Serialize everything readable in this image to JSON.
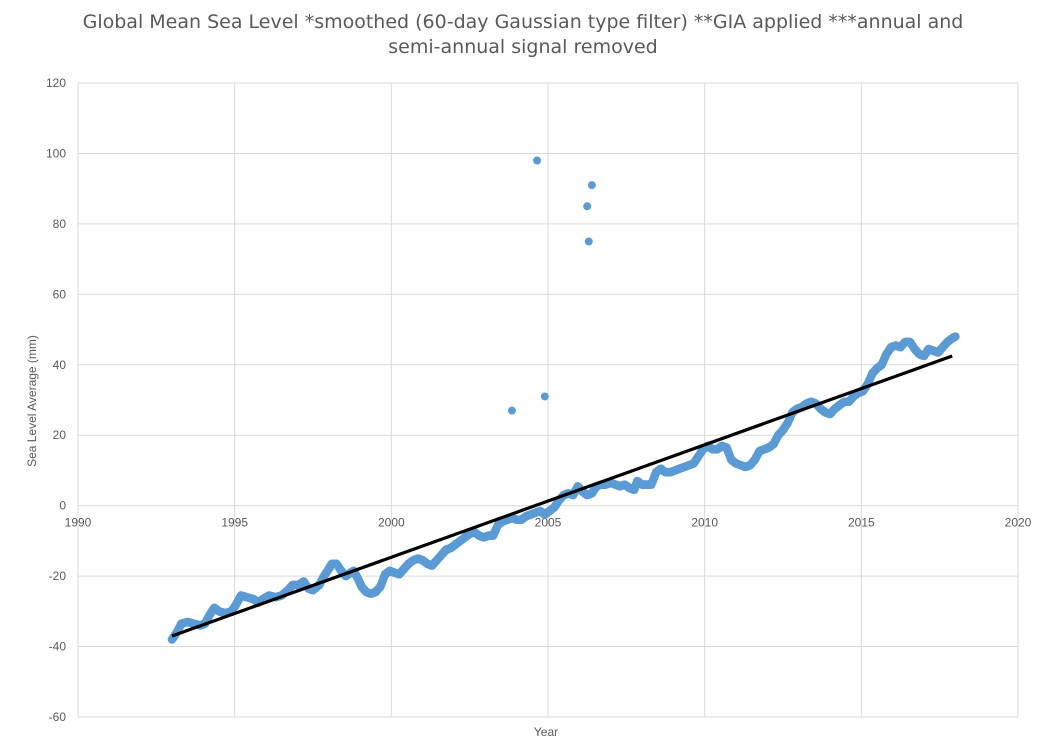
{
  "chart_data": {
    "type": "scatter",
    "title": "Global Mean Sea Level *smoothed (60-day Gaussian type filter) **GIA applied ***annual and semi-annual signal removed",
    "title_lines": [
      "Global Mean Sea Level *smoothed (60-day Gaussian type filter) **GIA applied ***annual and",
      "semi-annual signal removed"
    ],
    "xlabel": "Year",
    "ylabel": "Sea Level Average (mm)",
    "xlim": [
      1990,
      2020
    ],
    "ylim": [
      -60,
      120
    ],
    "x_ticks": [
      "1990",
      "1995",
      "2000",
      "2005",
      "2010",
      "2015",
      "2020"
    ],
    "y_ticks": [
      "-60",
      "-40",
      "-20",
      "0",
      "20",
      "40",
      "60",
      "80",
      "100",
      "120"
    ],
    "grid": true,
    "marker_color": "#5b9bd5",
    "trendline_color": "#000000",
    "series": [
      {
        "values": [
          [
            1993.0,
            -38
          ],
          [
            1993.15,
            -36
          ],
          [
            1993.3,
            -33.5
          ],
          [
            1993.5,
            -33
          ],
          [
            1993.7,
            -33.5
          ],
          [
            1993.9,
            -34
          ],
          [
            1994.05,
            -33.5
          ],
          [
            1994.2,
            -31
          ],
          [
            1994.35,
            -29
          ],
          [
            1994.5,
            -30
          ],
          [
            1994.7,
            -30.5
          ],
          [
            1994.9,
            -30
          ],
          [
            1995.05,
            -28
          ],
          [
            1995.2,
            -25.5
          ],
          [
            1995.4,
            -26
          ],
          [
            1995.6,
            -26.5
          ],
          [
            1995.75,
            -27.5
          ],
          [
            1995.9,
            -26.5
          ],
          [
            1996.1,
            -25.5
          ],
          [
            1996.3,
            -26
          ],
          [
            1996.5,
            -25.5
          ],
          [
            1996.7,
            -24
          ],
          [
            1996.85,
            -22.5
          ],
          [
            1997.05,
            -22.5
          ],
          [
            1997.2,
            -21.5
          ],
          [
            1997.35,
            -23.5
          ],
          [
            1997.5,
            -24
          ],
          [
            1997.7,
            -22.5
          ],
          [
            1997.85,
            -20
          ],
          [
            1998.0,
            -18
          ],
          [
            1998.1,
            -16.5
          ],
          [
            1998.25,
            -16.5
          ],
          [
            1998.4,
            -18.5
          ],
          [
            1998.55,
            -20
          ],
          [
            1998.7,
            -19
          ],
          [
            1998.8,
            -18.5
          ],
          [
            1998.95,
            -21
          ],
          [
            1999.05,
            -23
          ],
          [
            1999.2,
            -24.5
          ],
          [
            1999.35,
            -25
          ],
          [
            1999.5,
            -24.5
          ],
          [
            1999.65,
            -23
          ],
          [
            1999.8,
            -19.5
          ],
          [
            1999.95,
            -18.5
          ],
          [
            2000.1,
            -19
          ],
          [
            2000.25,
            -19.5
          ],
          [
            2000.4,
            -18
          ],
          [
            2000.55,
            -16.5
          ],
          [
            2000.7,
            -15.5
          ],
          [
            2000.85,
            -15
          ],
          [
            2001.0,
            -15.5
          ],
          [
            2001.15,
            -16.5
          ],
          [
            2001.3,
            -17
          ],
          [
            2001.45,
            -15.5
          ],
          [
            2001.6,
            -14
          ],
          [
            2001.75,
            -12.5
          ],
          [
            2001.9,
            -12
          ],
          [
            2002.05,
            -11
          ],
          [
            2002.2,
            -10
          ],
          [
            2002.35,
            -9
          ],
          [
            2002.5,
            -8
          ],
          [
            2002.65,
            -7.5
          ],
          [
            2002.8,
            -8.5
          ],
          [
            2002.95,
            -9
          ],
          [
            2003.1,
            -8.5
          ],
          [
            2003.25,
            -8.5
          ],
          [
            2003.4,
            -5.5
          ],
          [
            2003.55,
            -4.5
          ],
          [
            2003.7,
            -4
          ],
          [
            2003.85,
            -3.5
          ],
          [
            2004.0,
            -4
          ],
          [
            2004.15,
            -4
          ],
          [
            2004.3,
            -3
          ],
          [
            2004.45,
            -2.5
          ],
          [
            2004.6,
            -2
          ],
          [
            2004.75,
            -1.5
          ],
          [
            2004.9,
            -2.5
          ],
          [
            2005.05,
            -1.5
          ],
          [
            2005.2,
            -0.5
          ],
          [
            2005.35,
            1.5
          ],
          [
            2005.5,
            3
          ],
          [
            2005.65,
            3.5
          ],
          [
            2005.8,
            3
          ],
          [
            2005.95,
            5.5
          ],
          [
            2006.1,
            4
          ],
          [
            2006.25,
            3
          ],
          [
            2006.4,
            3.5
          ],
          [
            2006.55,
            5.5
          ],
          [
            2006.7,
            6
          ],
          [
            2006.85,
            6
          ],
          [
            2007.0,
            6.5
          ],
          [
            2007.15,
            6
          ],
          [
            2007.3,
            5.5
          ],
          [
            2007.45,
            6
          ],
          [
            2007.6,
            5
          ],
          [
            2007.75,
            4.5
          ],
          [
            2007.85,
            7
          ],
          [
            2008.0,
            6
          ],
          [
            2008.15,
            6
          ],
          [
            2008.3,
            6
          ],
          [
            2008.45,
            9.5
          ],
          [
            2008.6,
            10.5
          ],
          [
            2008.75,
            9.5
          ],
          [
            2008.9,
            9.5
          ],
          [
            2009.05,
            10
          ],
          [
            2009.2,
            10.5
          ],
          [
            2009.35,
            11
          ],
          [
            2009.5,
            11.5
          ],
          [
            2009.65,
            12
          ],
          [
            2009.8,
            14
          ],
          [
            2009.95,
            16
          ],
          [
            2010.1,
            17
          ],
          [
            2010.25,
            16
          ],
          [
            2010.4,
            16
          ],
          [
            2010.55,
            17
          ],
          [
            2010.7,
            16.5
          ],
          [
            2010.85,
            13
          ],
          [
            2011.0,
            12
          ],
          [
            2011.15,
            11.5
          ],
          [
            2011.3,
            11
          ],
          [
            2011.45,
            11.5
          ],
          [
            2011.6,
            13
          ],
          [
            2011.75,
            15.5
          ],
          [
            2011.9,
            16
          ],
          [
            2012.05,
            16.5
          ],
          [
            2012.2,
            17.5
          ],
          [
            2012.35,
            20
          ],
          [
            2012.5,
            21.5
          ],
          [
            2012.65,
            23.5
          ],
          [
            2012.8,
            26.5
          ],
          [
            2012.95,
            27.5
          ],
          [
            2013.1,
            28
          ],
          [
            2013.25,
            29
          ],
          [
            2013.4,
            29.5
          ],
          [
            2013.55,
            29
          ],
          [
            2013.7,
            27.5
          ],
          [
            2013.85,
            26.5
          ],
          [
            2014.0,
            26
          ],
          [
            2014.15,
            27.5
          ],
          [
            2014.3,
            28.5
          ],
          [
            2014.45,
            29.5
          ],
          [
            2014.6,
            29.5
          ],
          [
            2014.75,
            31
          ],
          [
            2014.9,
            32
          ],
          [
            2015.05,
            32.5
          ],
          [
            2015.2,
            34.5
          ],
          [
            2015.35,
            37.5
          ],
          [
            2015.5,
            39
          ],
          [
            2015.65,
            40
          ],
          [
            2015.8,
            43
          ],
          [
            2015.95,
            45
          ],
          [
            2016.1,
            45.5
          ],
          [
            2016.25,
            45
          ],
          [
            2016.4,
            46.5
          ],
          [
            2016.55,
            46.5
          ],
          [
            2016.7,
            44.5
          ],
          [
            2016.85,
            43
          ],
          [
            2017.0,
            42.5
          ],
          [
            2017.15,
            44.5
          ],
          [
            2017.3,
            44
          ],
          [
            2017.45,
            43.5
          ],
          [
            2017.6,
            45
          ],
          [
            2017.75,
            46.5
          ],
          [
            2017.9,
            47.5
          ],
          [
            2018.0,
            48
          ],
          [
            2003.85,
            27
          ],
          [
            2004.65,
            98
          ],
          [
            2004.9,
            31
          ],
          [
            2006.25,
            85
          ],
          [
            2006.3,
            75
          ],
          [
            2006.4,
            91
          ]
        ]
      }
    ],
    "trendline": {
      "from": [
        1993.0,
        -37
      ],
      "to": [
        2017.9,
        42.5
      ]
    }
  }
}
